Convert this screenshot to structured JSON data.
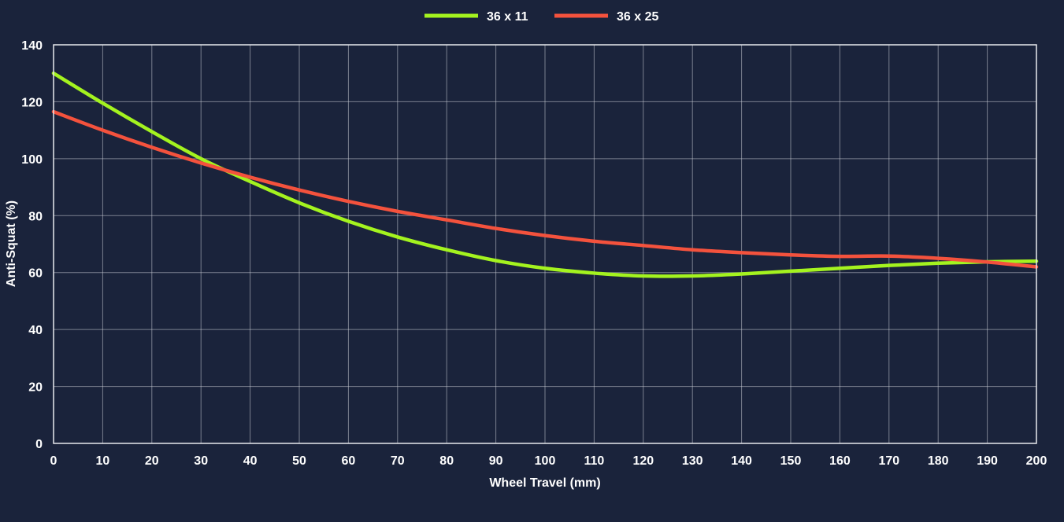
{
  "chart_data": {
    "type": "line",
    "xlabel": "Wheel Travel (mm)",
    "ylabel": "Anti-Squat (%)",
    "xlim": [
      0,
      200
    ],
    "ylim": [
      0,
      140
    ],
    "x_ticks": [
      0,
      10,
      20,
      30,
      40,
      50,
      60,
      70,
      80,
      90,
      100,
      110,
      120,
      130,
      140,
      150,
      160,
      170,
      180,
      190,
      200
    ],
    "y_ticks": [
      0,
      20,
      40,
      60,
      80,
      100,
      120,
      140
    ],
    "grid": true,
    "legend_position": "top-center",
    "x": [
      0,
      10,
      20,
      30,
      40,
      50,
      60,
      70,
      80,
      90,
      100,
      110,
      120,
      130,
      140,
      150,
      160,
      170,
      180,
      190,
      200
    ],
    "series": [
      {
        "name": "36 x 11",
        "color": "#a4f31f",
        "values": [
          130,
          119.5,
          109.5,
          100,
          92,
          84.5,
          78,
          72.5,
          68,
          64.2,
          61.5,
          59.8,
          58.8,
          58.8,
          59.5,
          60.5,
          61.5,
          62.5,
          63.3,
          63.8,
          64
        ]
      },
      {
        "name": "36 x 25",
        "color": "#f4523d",
        "values": [
          116.5,
          110,
          104,
          98.5,
          93.5,
          89,
          85,
          81.5,
          78.5,
          75.5,
          73,
          71,
          69.5,
          68,
          67,
          66.2,
          65.7,
          65.8,
          65,
          63.7,
          62
        ]
      }
    ]
  }
}
